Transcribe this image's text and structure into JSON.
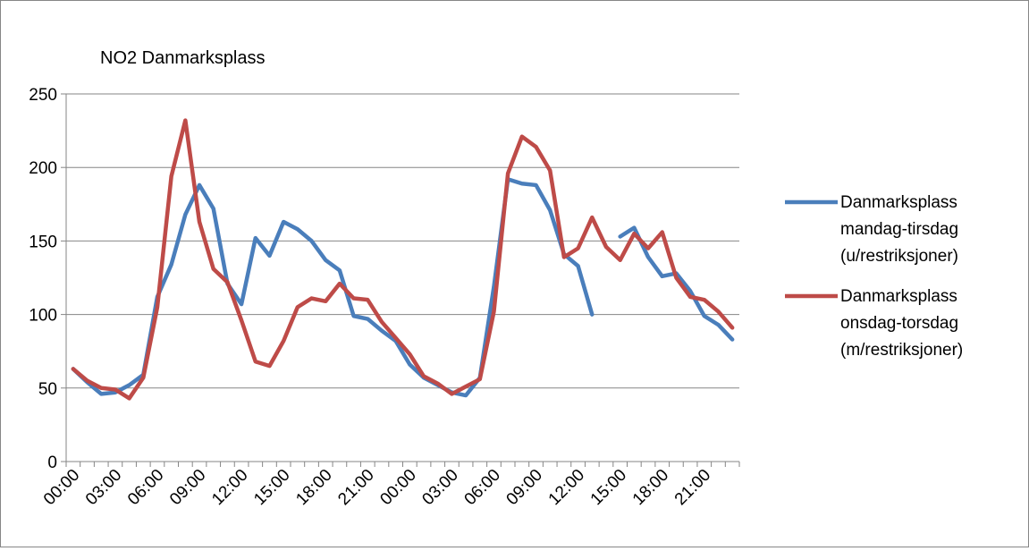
{
  "chart_data": {
    "type": "line",
    "title": "NO2 Danmarksplass",
    "xlabel": "",
    "ylabel": "",
    "ylim": [
      0,
      250
    ],
    "yticks": [
      0,
      50,
      100,
      150,
      200,
      250
    ],
    "grid": "horizontal",
    "legend_position": "right",
    "x_tick_labels": [
      "00:00",
      "03:00",
      "06:00",
      "09:00",
      "12:00",
      "15:00",
      "18:00",
      "21:00",
      "00:00",
      "03:00",
      "06:00",
      "09:00",
      "12:00",
      "15:00",
      "18:00",
      "21:00"
    ],
    "x_tick_interval": 3,
    "x_hours": [
      "00:00",
      "01:00",
      "02:00",
      "03:00",
      "04:00",
      "05:00",
      "06:00",
      "07:00",
      "08:00",
      "09:00",
      "10:00",
      "11:00",
      "12:00",
      "13:00",
      "14:00",
      "15:00",
      "16:00",
      "17:00",
      "18:00",
      "19:00",
      "20:00",
      "21:00",
      "22:00",
      "23:00",
      "00:00",
      "01:00",
      "02:00",
      "03:00",
      "04:00",
      "05:00",
      "06:00",
      "07:00",
      "08:00",
      "09:00",
      "10:00",
      "11:00",
      "12:00",
      "13:00",
      "14:00",
      "15:00",
      "16:00",
      "17:00",
      "18:00",
      "19:00",
      "20:00",
      "21:00",
      "22:00",
      "23:00"
    ],
    "series": [
      {
        "name_lines": [
          "Danmarksplass",
          "mandag-tirsdag",
          "(u/restriksjoner)"
        ],
        "color": "#4a7ebb",
        "values": [
          63,
          54,
          46,
          47,
          52,
          59,
          112,
          134,
          168,
          188,
          172,
          121,
          107,
          152,
          140,
          163,
          158,
          150,
          137,
          130,
          99,
          97,
          89,
          82,
          66,
          57,
          52,
          47,
          45,
          57,
          119,
          192,
          189,
          188,
          171,
          141,
          133,
          100,
          null,
          153,
          159,
          139,
          126,
          128,
          116,
          99,
          93,
          83
        ]
      },
      {
        "name_lines": [
          "Danmarksplass",
          "onsdag-torsdag",
          "(m/restriksjoner)"
        ],
        "color": "#be4b48",
        "values": [
          63,
          55,
          50,
          49,
          43,
          57,
          105,
          194,
          232,
          163,
          131,
          122,
          96,
          68,
          65,
          82,
          105,
          111,
          109,
          121,
          111,
          110,
          95,
          84,
          73,
          58,
          53,
          46,
          51,
          56,
          102,
          196,
          221,
          214,
          198,
          139,
          145,
          166,
          146,
          137,
          155,
          145,
          156,
          125,
          112,
          110,
          102,
          91
        ]
      }
    ]
  }
}
